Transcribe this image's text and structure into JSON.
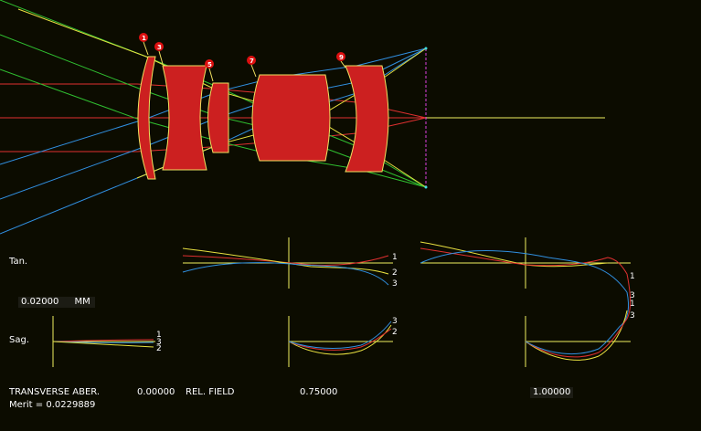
{
  "colors": {
    "background": "#0c0c00",
    "lens_fill": "#cc2020",
    "lens_edge": "#f0e060",
    "ray_red": "#e03030",
    "ray_green": "#30c030",
    "ray_blue": "#3090e0",
    "ray_yellow": "#e8e040",
    "axis": "#f0f060",
    "image_plane": "#e040e0"
  },
  "surface_badges": [
    "1",
    "3",
    "5",
    "7",
    "9"
  ],
  "labels": {
    "tan": "Tan.",
    "sag": "Sag.",
    "scale_value": "0.02000",
    "scale_unit": "MM",
    "transverse": "TRANSVERSE ABER.",
    "rel_field": "REL. FIELD",
    "merit": "Merit = 0.0229889"
  },
  "fields": [
    {
      "value": "0.00000"
    },
    {
      "value": "0.75000"
    },
    {
      "value": "1.00000"
    }
  ],
  "curve_labels": {
    "tan_mid": [
      "1",
      "2",
      "3"
    ],
    "tan_right": [
      "1",
      "3",
      "1",
      "3"
    ],
    "sag_left": [
      "1",
      "3",
      "2"
    ],
    "sag_mid": [
      "3",
      "2"
    ]
  }
}
